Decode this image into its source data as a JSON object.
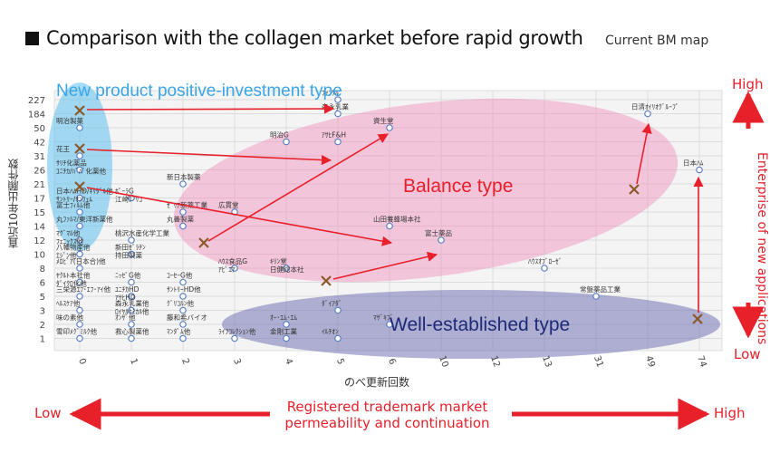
{
  "header": {
    "title": "Comparison with the collagen market before rapid growth",
    "subtitle": "Current BM map"
  },
  "chart_data": {
    "type": "scatter",
    "title": "",
    "xlabel": "のべ更新回数",
    "ylabel": "直近10年出願件数",
    "x_ticks": [
      "0",
      "1",
      "2",
      "3",
      "4",
      "5",
      "6",
      "10",
      "12",
      "13",
      "31",
      "49",
      "74"
    ],
    "y_ticks": [
      "227",
      "184",
      "50",
      "42",
      "31",
      "26",
      "21",
      "17",
      "15",
      "14",
      "12",
      "10",
      "8",
      "6",
      "5",
      "3",
      "2",
      "1"
    ],
    "grid": true,
    "colors": {
      "point_outline": "#5b7fc4",
      "cross": "#8a5a2a",
      "arrow": "#e8202a"
    },
    "regions": [
      {
        "label": "New product positive-investment type",
        "color": "#5cc0ec"
      },
      {
        "label": "Balance type",
        "color": "#f07fb3"
      },
      {
        "label": "Well-established type",
        "color": "#6668ad"
      }
    ],
    "points": [
      {
        "label": "明治製菓",
        "x": "0",
        "y": "50"
      },
      {
        "label": "花王",
        "x": "0",
        "y": "31"
      },
      {
        "label": "ｻﾘﾁ化薬品",
        "x": "0",
        "y": "26"
      },
      {
        "label": "ﾕﾆﾁｶ/ﾊﾞﾊﾞ化薬他",
        "x": "0",
        "y": "26"
      },
      {
        "label": "日本ﾊﾑHD/ｷﾘﾀﾞﾙ他",
        "x": "0",
        "y": "17"
      },
      {
        "label": "ｻﾝﾄﾘｰ/ｵﾝﾌｪﾑ",
        "x": "0",
        "y": "17"
      },
      {
        "label": "富士ﾌｨﾙﾑ他",
        "x": "0",
        "y": "15"
      },
      {
        "label": "丸ﾌｧﾙﾏ/東洋新薬他",
        "x": "0",
        "y": "14"
      },
      {
        "label": "ﾏｸﾞﾏﾙ他",
        "x": "0",
        "y": "12"
      },
      {
        "label": "ﾌｪﾆｯｸｽ他",
        "x": "0",
        "y": "12"
      },
      {
        "label": "八幡物産他",
        "x": "0",
        "y": "10"
      },
      {
        "label": "ｴｼﾞﾝ他",
        "x": "0",
        "y": "10"
      },
      {
        "label": "ﾒﾛﾋﾞｱ(日本合)他",
        "x": "0",
        "y": "8"
      },
      {
        "label": "ﾔｸﾙﾄ本社他",
        "x": "0",
        "y": "6"
      },
      {
        "label": "ﾀﾞｲｸﾛ化他",
        "x": "0",
        "y": "6"
      },
      {
        "label": "三栄源ｴﾌ･ｴﾌ･ｱｲ他",
        "x": "0",
        "y": "5"
      },
      {
        "label": "ﾍﾙｽｹｱ他",
        "x": "0",
        "y": "3"
      },
      {
        "label": "味の素他",
        "x": "0",
        "y": "2"
      },
      {
        "label": "雪印ﾒｸﾞﾐﾙｸ他",
        "x": "0",
        "y": "1"
      },
      {
        "label": "ﾎﾟｰﾗG",
        "x": "1",
        "y": "17"
      },
      {
        "label": "江崎ｸﾞﾘｺ",
        "x": "1",
        "y": "17"
      },
      {
        "label": "桃沢水産化学工業",
        "x": "1",
        "y": "12"
      },
      {
        "label": "新田ｾﾞﾗﾁﾝ",
        "x": "1",
        "y": "10"
      },
      {
        "label": "持田製薬",
        "x": "1",
        "y": "10"
      },
      {
        "label": "ﾆｯｾﾞG他",
        "x": "1",
        "y": "6"
      },
      {
        "label": "ﾕﾆﾁｶHD",
        "x": "1",
        "y": "5"
      },
      {
        "label": "ｱｻﾋHD",
        "x": "1",
        "y": "5"
      },
      {
        "label": "森永乳業他",
        "x": "1",
        "y": "3"
      },
      {
        "label": "ﾛｲﾔﾙｹﾐｶﾙ他",
        "x": "1",
        "y": "3"
      },
      {
        "label": "ｵﾝｻﾞ他",
        "x": "1",
        "y": "2"
      },
      {
        "label": "救心製薬他",
        "x": "1",
        "y": "1"
      },
      {
        "label": "新日本製薬",
        "x": "2",
        "y": "21"
      },
      {
        "label": "ｾﾞﾘｱ新薬工業",
        "x": "2",
        "y": "15"
      },
      {
        "label": "丸善製薬",
        "x": "2",
        "y": "14"
      },
      {
        "label": "ｺｰｾｰG他",
        "x": "2",
        "y": "6"
      },
      {
        "label": "ｻﾝﾄﾘｰHD他",
        "x": "2",
        "y": "5"
      },
      {
        "label": "ｸﾞﾘｺﾙﾝ他",
        "x": "2",
        "y": "3"
      },
      {
        "label": "藤和希バイオ",
        "x": "2",
        "y": "2"
      },
      {
        "label": "ﾏﾝﾀﾞﾑ他",
        "x": "2",
        "y": "1"
      },
      {
        "label": "広貫堂",
        "x": "3",
        "y": "15"
      },
      {
        "label": "ﾊｳｽ食品G",
        "x": "3",
        "y": "8"
      },
      {
        "label": "ｱﾋﾟｴｱ",
        "x": "3",
        "y": "8"
      },
      {
        "label": "ﾗｲﾌｺﾚｸｼｮﾝ他",
        "x": "3",
        "y": "1"
      },
      {
        "label": "明治G",
        "x": "4",
        "y": "42"
      },
      {
        "label": "ｷﾘﾝ堂",
        "x": "4",
        "y": "8"
      },
      {
        "label": "日健総本社",
        "x": "4",
        "y": "8"
      },
      {
        "label": "ｵｰ･ｴﾑ･ｴﾑ",
        "x": "4",
        "y": "2"
      },
      {
        "label": "金剛工業",
        "x": "4",
        "y": "1"
      },
      {
        "label": "ﾌｧﾝｹﾙ",
        "x": "5",
        "y": "227"
      },
      {
        "label": "森永乳業",
        "x": "5",
        "y": "184"
      },
      {
        "label": "ｱｻﾋF&H",
        "x": "5",
        "y": "42"
      },
      {
        "label": "ﾀﾞｲｱﾀﾞ",
        "x": "5",
        "y": "3"
      },
      {
        "label": "ｲﾙﾁｵﾝ",
        "x": "5",
        "y": "1"
      },
      {
        "label": "ﾏｻﾞｷﾌﾞ",
        "x": "6",
        "y": "2"
      },
      {
        "label": "資生堂",
        "x": "6",
        "y": "50"
      },
      {
        "label": "山田養蜂場本社",
        "x": "6",
        "y": "14"
      },
      {
        "label": "富士薬品",
        "x": "10",
        "y": "12"
      },
      {
        "label": "ﾊｳｽｵﾌﾞﾛｰｾﾞ",
        "x": "13",
        "y": "8"
      },
      {
        "label": "常盤薬品工業",
        "x": "31",
        "y": "5"
      },
      {
        "label": "日清ｵｲﾘｵｸﾞﾙｰﾌﾟ",
        "x": "49",
        "y": "184"
      },
      {
        "label": "日本ﾊﾑ",
        "x": "74",
        "y": "26"
      }
    ]
  },
  "axes_labels": {
    "right_high": "High",
    "right_low": "Low",
    "right_middle": "Enterprise of new applications",
    "bottom_low": "Low",
    "bottom_high": "High",
    "bottom_middle": "Registered trademark market permeability and continuation"
  }
}
